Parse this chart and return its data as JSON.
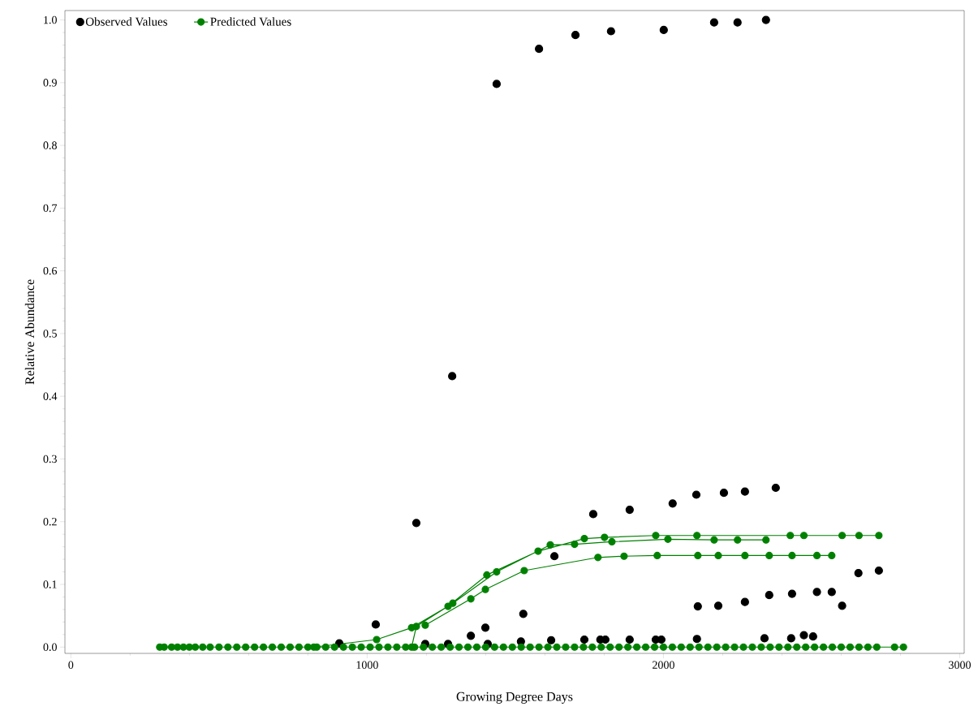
{
  "chart_data": {
    "type": "line",
    "xlabel": "Growing Degree Days",
    "ylabel": "Relative Abundance",
    "xlim": [
      -20,
      3015
    ],
    "ylim": [
      -0.01,
      1.015
    ],
    "xticks": [
      0,
      1000,
      2000,
      3000
    ],
    "yticks": [
      {
        "value": 0,
        "label": "0.0"
      },
      {
        "value": 0.1,
        "label": "0.1"
      },
      {
        "value": 0.2,
        "label": "0.2"
      },
      {
        "value": 0.3,
        "label": "0.3"
      },
      {
        "value": 0.4,
        "label": "0.4"
      },
      {
        "value": 0.5,
        "label": "0.5"
      },
      {
        "value": 0.6,
        "label": "0.6"
      },
      {
        "value": 0.7,
        "label": "0.7"
      },
      {
        "value": 0.8,
        "label": "0.8"
      },
      {
        "value": 0.9,
        "label": "0.9"
      },
      {
        "value": 1.0,
        "label": "1.0"
      }
    ],
    "legend": "top left",
    "marker": "circle",
    "grid": false,
    "series": [
      {
        "name": "Observed Values",
        "type": "scatter",
        "color": "#000000",
        "x": [
          1437,
          1580,
          1703,
          1823,
          2001,
          2171,
          2250,
          2346,
          1287,
          1029,
          1166,
          1527,
          1632,
          1763,
          1886,
          2031,
          2111,
          2204,
          2275,
          2379,
          2658,
          2727,
          2116,
          2185,
          2275,
          2357,
          2434,
          2518,
          2568,
          2603,
          2113,
          2341,
          2431,
          2474,
          2505,
          1399,
          1350,
          906,
          1196,
          1273,
          1407,
          1519,
          1621,
          1733,
          1787,
          1804,
          1886,
          1974,
          1993
        ],
        "values": [
          0.898,
          0.954,
          0.976,
          0.982,
          0.984,
          0.996,
          0.996,
          1.0,
          0.432,
          0.036,
          0.198,
          0.053,
          0.145,
          0.212,
          0.219,
          0.229,
          0.243,
          0.246,
          0.248,
          0.254,
          0.118,
          0.122,
          0.065,
          0.066,
          0.072,
          0.083,
          0.085,
          0.088,
          0.088,
          0.066,
          0.013,
          0.014,
          0.014,
          0.019,
          0.017,
          0.031,
          0.018,
          0.006,
          0.005,
          0.005,
          0.005,
          0.009,
          0.011,
          0.012,
          0.012,
          0.012,
          0.012,
          0.012,
          0.012
        ]
      },
      {
        "name": "Predicted Values",
        "color": "#008000",
        "x": [
          300,
          315,
          340,
          360,
          380,
          400,
          420,
          445,
          470,
          500,
          530,
          560,
          590,
          620,
          650,
          680,
          710,
          740,
          770,
          800,
          830,
          860,
          890,
          920,
          950,
          980,
          1010,
          1040,
          1070,
          1100,
          1130,
          1160,
          1190,
          1220,
          1250,
          1280,
          1310,
          1340,
          1370,
          1400,
          1430,
          1460,
          1490,
          1520,
          1550,
          1580,
          1610,
          1640,
          1670,
          1700,
          1730,
          1760,
          1790,
          1820,
          1850,
          1880,
          1910,
          1940,
          1970,
          2000,
          2030,
          2060,
          2090,
          2120,
          2150,
          2180,
          2210,
          2240,
          2270,
          2300,
          2330,
          2360,
          2390,
          2420,
          2450,
          2480,
          2510,
          2540,
          2570,
          2600,
          2630,
          2660,
          2690,
          2720,
          2780,
          2810
        ],
        "values": [
          0,
          0,
          0,
          0,
          0,
          0,
          0,
          0,
          0,
          0,
          0,
          0,
          0,
          0,
          0,
          0,
          0,
          0,
          0,
          0,
          0,
          0,
          0,
          0,
          0,
          0,
          0,
          0,
          0,
          0,
          0,
          0,
          0,
          0,
          0,
          0,
          0,
          0,
          0,
          0,
          0,
          0,
          0,
          0,
          0,
          0,
          0,
          0,
          0,
          0,
          0,
          0,
          0,
          0,
          0,
          0,
          0,
          0,
          0,
          0,
          0,
          0,
          0,
          0,
          0,
          0,
          0,
          0,
          0,
          0,
          0,
          0,
          0,
          0,
          0,
          0,
          0,
          0,
          0,
          0,
          0,
          0,
          0,
          0,
          0,
          0
        ]
      },
      {
        "color": "#008000",
        "x": [
          820,
          1032,
          1150,
          1273,
          1404,
          1577,
          1733,
          1801,
          1974,
          2113,
          2428,
          2474,
          2603,
          2660,
          2727,
          null,
          1150,
          1166,
          1289,
          1437,
          1618,
          1700,
          1826,
          2015,
          2171,
          2250,
          2346,
          null,
          1196,
          1350,
          1399,
          1530,
          1779,
          1867,
          1979,
          2116,
          2185,
          2275,
          2357,
          2434,
          2518,
          2568
        ],
        "values": [
          0,
          0.012,
          0.031,
          0.065,
          0.115,
          0.153,
          0.173,
          0.175,
          0.178,
          0.178,
          0.178,
          0.178,
          0.178,
          0.178,
          0.178,
          null,
          0,
          0.033,
          0.07,
          0.12,
          0.163,
          0.164,
          0.168,
          0.172,
          0.171,
          0.171,
          0.171,
          null,
          0.035,
          0.077,
          0.092,
          0.122,
          0.143,
          0.145,
          0.146,
          0.146,
          0.146,
          0.146,
          0.146,
          0.146,
          0.146,
          0.146
        ]
      }
    ]
  }
}
